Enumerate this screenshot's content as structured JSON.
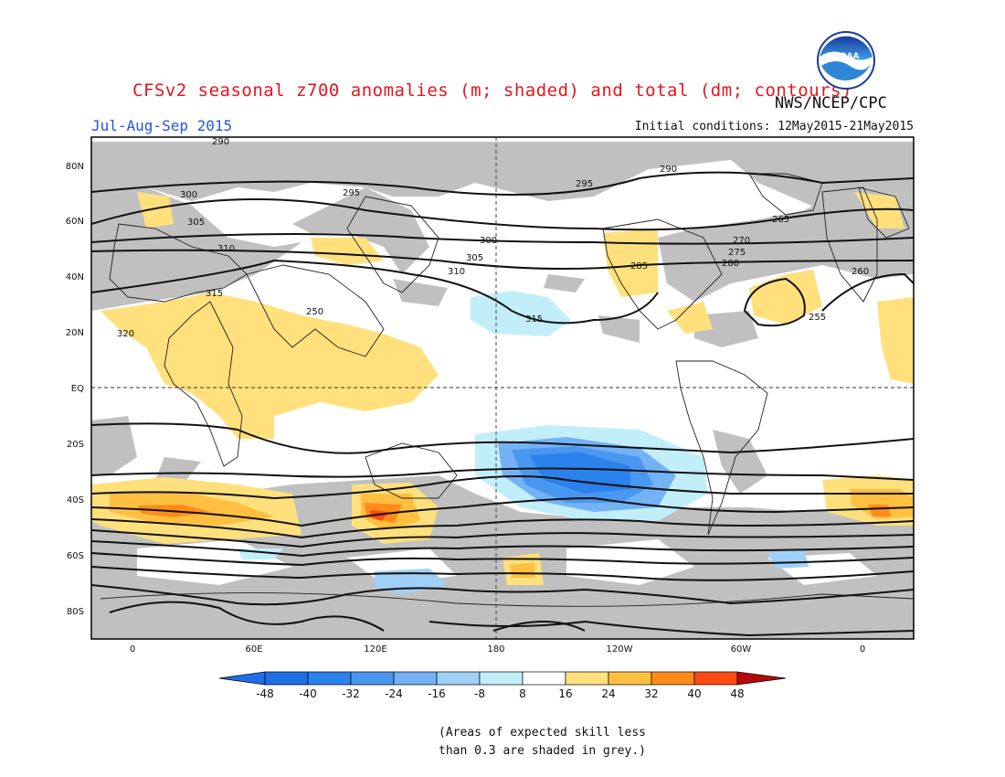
{
  "header": {
    "title": "CFSv2 seasonal z700 anomalies (m; shaded) and total (dm; contours)",
    "agency": "NWS/NCEP/CPC",
    "season": "Jul-Aug-Sep 2015",
    "initial_conditions": "Initial conditions: 12May2015-21May2015",
    "logo_text": "NOAA"
  },
  "map": {
    "lat_labels": [
      "80N",
      "60N",
      "40N",
      "20N",
      "EQ",
      "20S",
      "40S",
      "60S",
      "80S"
    ],
    "lon_labels": [
      "0",
      "60E",
      "120E",
      "180",
      "120W",
      "60W",
      "0"
    ],
    "contour_labels": [
      "290",
      "295",
      "300",
      "305",
      "310",
      "315",
      "320",
      "315",
      "310",
      "305",
      "300",
      "295",
      "290",
      "285",
      "280",
      "275",
      "270",
      "265",
      "260",
      "255",
      "250"
    ]
  },
  "colorbar": {
    "ticks": [
      "-48",
      "-40",
      "-32",
      "-24",
      "-16",
      "-8",
      "8",
      "16",
      "24",
      "32",
      "40",
      "48"
    ],
    "colors": [
      "#1e6fe6",
      "#2b82ec",
      "#4a97f0",
      "#72b2f5",
      "#9fd0f8",
      "#c2eefa",
      "#ffffff",
      "#ffe07c",
      "#ffbf40",
      "#ff8c1a",
      "#ff4a12",
      "#e81a0c",
      "#b40a0a",
      "#1e6fe6",
      "#b40a0a"
    ]
  },
  "footnote": {
    "line1": "(Areas of expected skill less",
    "line2": "than 0.3 are shaded in grey.)"
  }
}
